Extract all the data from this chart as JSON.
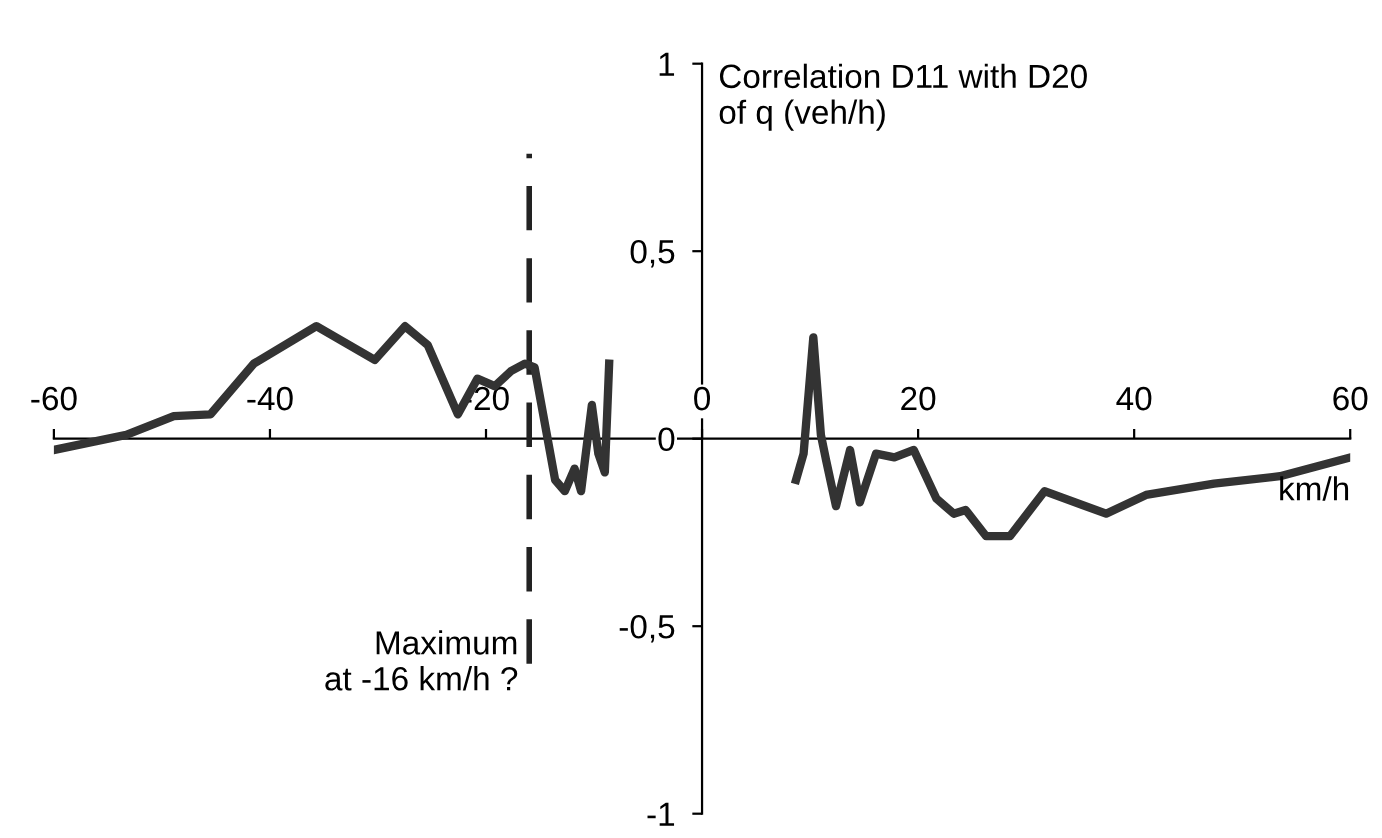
{
  "chart_data": {
    "type": "line",
    "title": "Correlation D11 with D20\nof q (veh/h)",
    "xlabel": "km/h",
    "x": [
      -60,
      -53.3,
      -48.9,
      -45.5,
      -41.5,
      -35.7,
      -30.3,
      -27.5,
      -25.4,
      -22.6,
      -20.8,
      -19.2,
      -17.7,
      -16.4,
      -15.5,
      -13.6,
      -12.7,
      -11.8,
      -11.2,
      -10.2,
      -9.6,
      -9.0,
      -8.6,
      0,
      8.7,
      9.4,
      10.3,
      11,
      11.5,
      12.4,
      13.7,
      14.6,
      16.1,
      17.8,
      19.6,
      21.7,
      23.3,
      24.4,
      26.3,
      28.5,
      31.7,
      37.4,
      41.1,
      47.4,
      53.5,
      60
    ],
    "series": [
      {
        "color": "#333333",
        "values": [
          -0.03,
          0.01,
          0.06,
          0.065,
          0.2,
          0.3,
          0.21,
          0.3,
          0.25,
          0.065,
          0.16,
          0.14,
          0.18,
          0.2,
          0.19,
          -0.11,
          -0.14,
          -0.08,
          -0.14,
          0.09,
          -0.04,
          -0.09,
          0.2,
          null,
          -0.11,
          -0.04,
          0.27,
          0.01,
          -0.06,
          -0.18,
          -0.03,
          -0.17,
          -0.04,
          -0.05,
          -0.03,
          -0.16,
          -0.2,
          -0.19,
          -0.26,
          -0.26,
          -0.14,
          -0.2,
          -0.15,
          -0.12,
          -0.1,
          -0.05
        ]
      }
    ],
    "xlim": [
      -60,
      60
    ],
    "ylim": [
      -1,
      1
    ],
    "xticks": [
      -60,
      -40,
      -20,
      0,
      20,
      40,
      60
    ],
    "yticks": [
      {
        "value": -1,
        "label": "-1"
      },
      {
        "value": -0.5,
        "label": "-0,5"
      },
      {
        "value": 0,
        "label": "0"
      },
      {
        "value": 0.5,
        "label": "0,5"
      },
      {
        "value": 1,
        "label": "1"
      }
    ],
    "ref_lines": [
      {
        "axis": "x",
        "value": -16,
        "label": "Maximum\nat -16 km/h ?",
        "color": "#222222",
        "line_style": "dashed"
      }
    ],
    "grid": false,
    "legend": false,
    "marker": "none",
    "line_style": "solid"
  }
}
